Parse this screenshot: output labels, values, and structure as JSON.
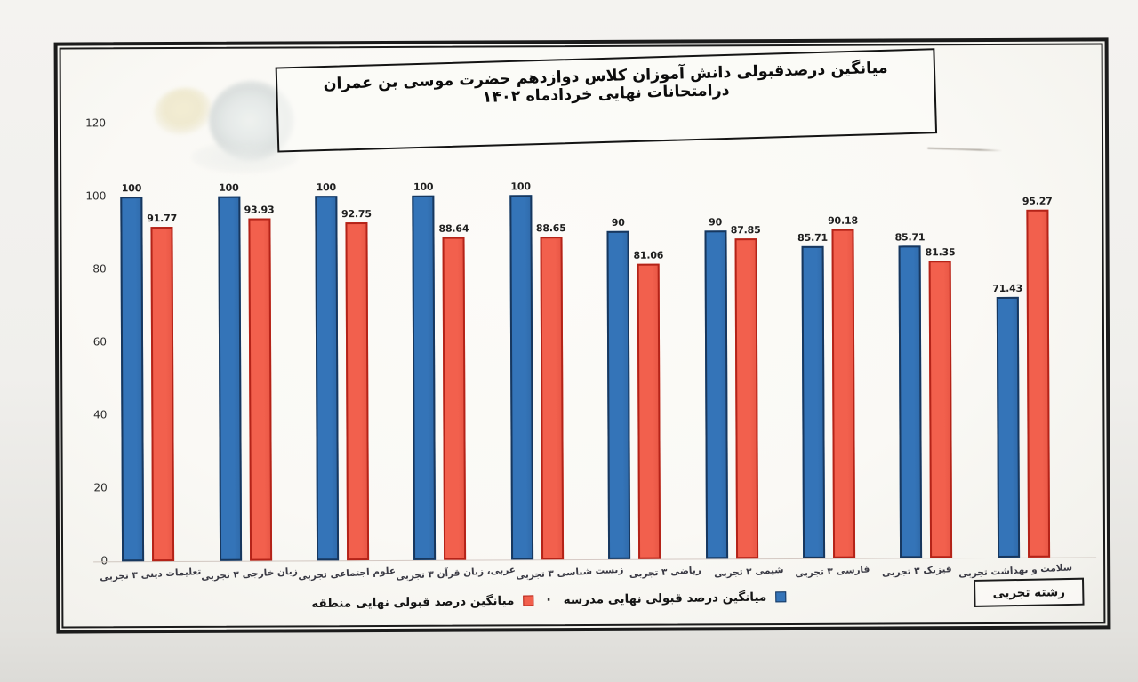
{
  "page": {
    "kind": "scanned printed page with embedded Excel bar chart",
    "title": "میانگین درصدقبولی دانش آموزان کلاس دوازدهم حضرت موسی بن عمران درامتحانات نهایی خردادماه ۱۴۰۲"
  },
  "colors": {
    "school_fill": "#3474b8",
    "school_border": "#17375e",
    "district_fill": "#f2604d",
    "district_border": "#b42318"
  },
  "chart_data": {
    "type": "bar",
    "title": "میانگین درصدقبولی دانش آموزان کلاس دوازدهم حضرت موسی بن عمران درامتحانات نهایی خردادماه ۱۴۰۲",
    "categories": [
      "تعلیمات دینی ۳ تجربی",
      "زبان خارجی ۳ تجربی",
      "علوم اجتماعی تجربی",
      "عربی، زبان قرآن ۳ تجربی",
      "زیست شناسی ۳ تجربی",
      "ریاضی ۳ تجربی",
      "شیمی ۳ تجربی",
      "فارسی ۳ تجربی",
      "فیزیک ۳ تجربی",
      "سلامت و بهداشت تجربی"
    ],
    "series": [
      {
        "name": "میانگین درصد قبولی نهایی مدرسه",
        "color": "#3474b8",
        "values": [
          100,
          100,
          100,
          100,
          100,
          90,
          90,
          85.71,
          85.71,
          71.43
        ],
        "labels": [
          "100",
          "100",
          "100",
          "100",
          "100",
          "90",
          "90",
          "85.71",
          "85.71",
          "71.43"
        ]
      },
      {
        "name": "میانگین درصد قبولی نهایی منطقه",
        "color": "#f2604d",
        "values": [
          91.77,
          93.93,
          92.75,
          88.64,
          88.65,
          81.06,
          87.85,
          90.18,
          81.35,
          95.27
        ],
        "labels": [
          "91.77",
          "93.93",
          "92.75",
          "88.64",
          "88.65",
          "81.06",
          "87.85",
          "90.18",
          "81.35",
          "95.27"
        ]
      }
    ],
    "ylim": [
      0,
      120
    ],
    "yticks": [
      "0",
      "20",
      "40",
      "60",
      "80",
      "100",
      "120"
    ],
    "xlabel": "",
    "ylabel": "",
    "grid": false,
    "legend_position": "bottom-center",
    "legend_separator": "·",
    "annotation_box": "رشته تجربی"
  }
}
